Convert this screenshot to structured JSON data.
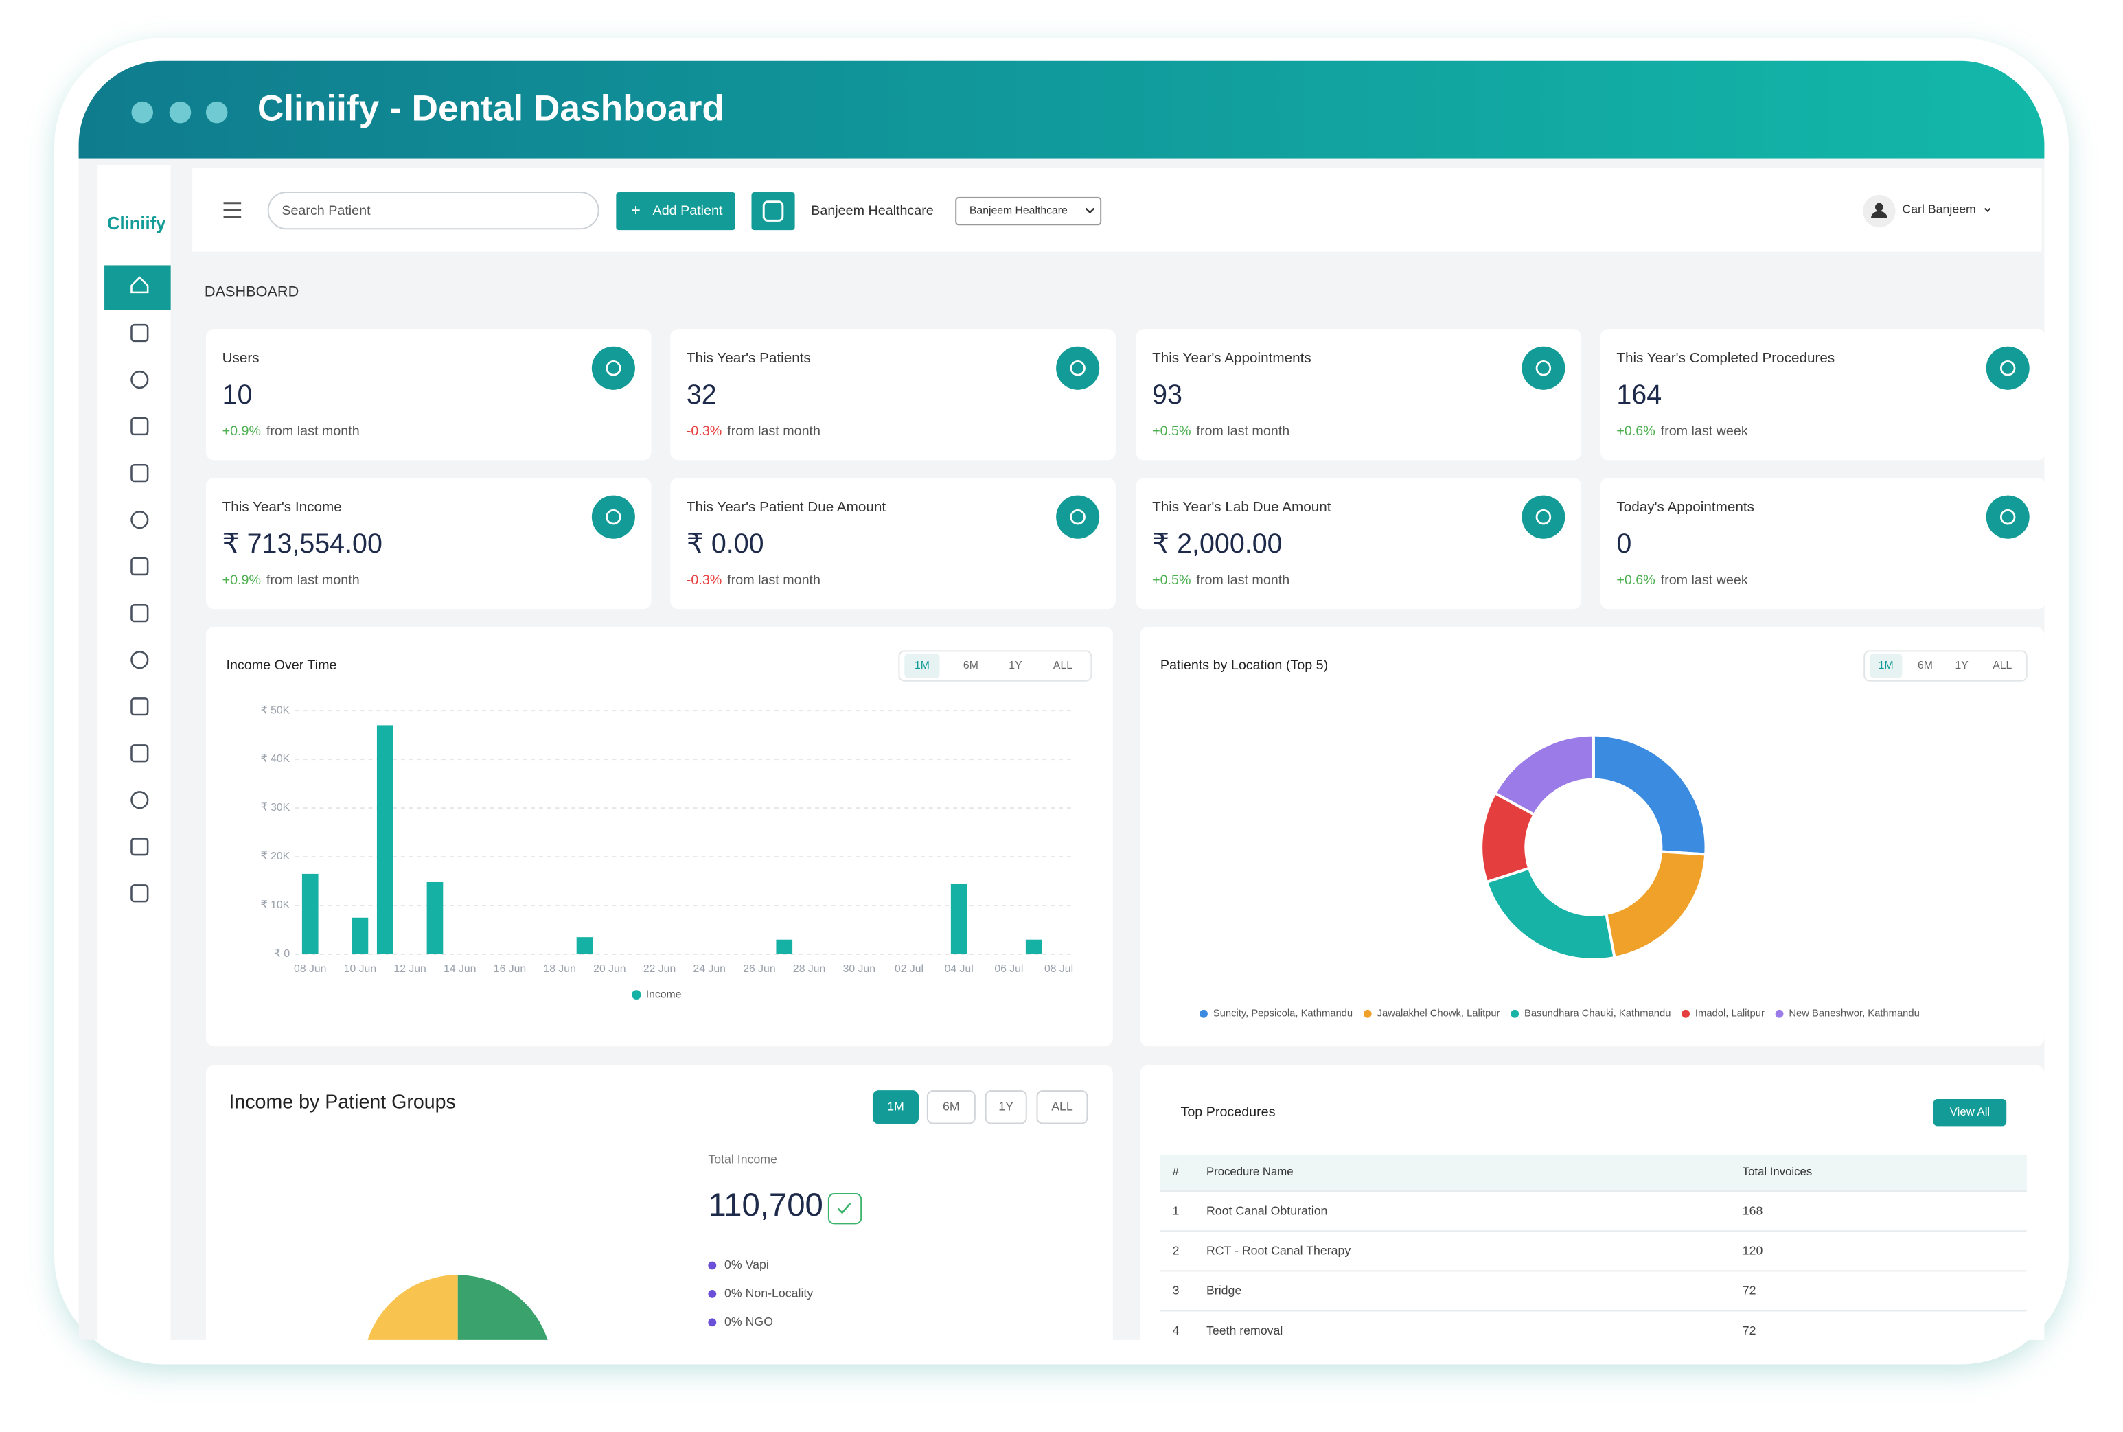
{
  "header": {
    "title": "Cliniify - Dental Dashboard"
  },
  "sidebar": {
    "logo": "Cliniify"
  },
  "topbar": {
    "search_placeholder": "Search Patient",
    "add_button": "Add Patient",
    "organization": "Banjeem Healthcare",
    "organization_select": "Banjeem Healthcare",
    "user": "Carl Banjeem"
  },
  "page_title": "DASHBOARD",
  "stats": [
    {
      "label": "Users",
      "value": "10",
      "change": "+0.9%",
      "note": "from last month"
    },
    {
      "label": "This Year's Patients",
      "value": "32",
      "change": "-0.3%",
      "note": "from last month"
    },
    {
      "label": "This Year's Appointments",
      "value": "93",
      "change": "+0.5%",
      "note": "from last month"
    },
    {
      "label": "This Year's Completed Procedures",
      "value": "164",
      "change": "+0.6%",
      "note": "from last week"
    },
    {
      "label": "This Year's Income",
      "value": "₹ 713,554.00",
      "change": "+0.9%",
      "note": "from last month"
    },
    {
      "label": "This Year's Patient Due Amount",
      "value": "₹ 0.00",
      "change": "-0.3%",
      "note": "from last month"
    },
    {
      "label": "This Year's Lab Due Amount",
      "value": "₹ 2,000.00",
      "change": "+0.5%",
      "note": "from last month"
    },
    {
      "label": "Today's Appointments",
      "value": "0",
      "change": "+0.6%",
      "note": "from last week"
    }
  ],
  "income_chart": {
    "chart_data": {
      "type": "bar",
      "title": "Income Over Time",
      "ranges": [
        "1M",
        "6M",
        "1Y",
        "ALL"
      ],
      "categories": [
        "08 Jun",
        null,
        "10 Jun",
        null,
        "12 Jun",
        null,
        "14 Jun",
        null,
        "16 Jun",
        null,
        "18 Jun",
        null,
        "20 Jun",
        null,
        "22 Jun",
        null,
        "24 Jun",
        null,
        "26 Jun",
        null,
        "28 Jun",
        null,
        "30 Jun",
        null,
        "02 Jul",
        null,
        "04 Jul",
        null,
        "06 Jul",
        null,
        "08 Jul"
      ],
      "series": [
        {
          "name": "Income",
          "color": "#14b1a4",
          "values": [
            16500,
            0,
            7500,
            47000,
            0,
            14800,
            0,
            0,
            0,
            0,
            0,
            3500,
            0,
            0,
            0,
            0,
            0,
            0,
            0,
            3000,
            0,
            0,
            0,
            0,
            0,
            0,
            14500,
            0,
            0,
            3000,
            0
          ]
        }
      ],
      "ylim": [
        0,
        50000
      ],
      "yticks": [
        {
          "value": 0,
          "label": "₹ 0"
        },
        {
          "value": 10000,
          "label": "₹ 10K"
        },
        {
          "value": 20000,
          "label": "₹ 20K"
        },
        {
          "value": 30000,
          "label": "₹ 30K"
        },
        {
          "value": 40000,
          "label": "₹ 40K"
        },
        {
          "value": 50000,
          "label": "₹ 50K"
        }
      ],
      "grid": true
    }
  },
  "location_chart": {
    "chart_data": {
      "type": "pie",
      "title": "Patients by Location (Top 5)",
      "ranges": [
        "1M",
        "6M",
        "1Y",
        "ALL"
      ],
      "categories": [
        "Suncity, Pepsicola, Kathmandu",
        "Jawalakhel Chowk, Lalitpur",
        "Basundhara Chauki, Kathmandu",
        "Imadol, Lalitpur",
        "New Baneshwor, Kathmandu"
      ],
      "values": [
        26,
        21,
        23,
        13,
        17
      ],
      "colors": [
        "#3b8be0",
        "#f0a12a",
        "#16b3a6",
        "#e53e3e",
        "#9b7be8"
      ]
    }
  },
  "patient_groups": {
    "title": "Income by Patient Groups",
    "ranges": [
      "1M",
      "6M",
      "1Y",
      "ALL"
    ],
    "total_label": "Total Income",
    "total": "110,700",
    "groups": [
      "0% Vapi",
      "0% Non-Locality",
      "0% NGO"
    ]
  },
  "top_procedures": {
    "title": "Top Procedures",
    "button": "View All",
    "columns": [
      "#",
      "Procedure Name",
      "Total Invoices"
    ],
    "rows": [
      [
        "1",
        "Root Canal Obturation",
        "168"
      ],
      [
        "2",
        "RCT - Root Canal Therapy",
        "120"
      ],
      [
        "3",
        "Bridge",
        "72"
      ],
      [
        "4",
        "Teeth removal",
        "72"
      ]
    ]
  }
}
